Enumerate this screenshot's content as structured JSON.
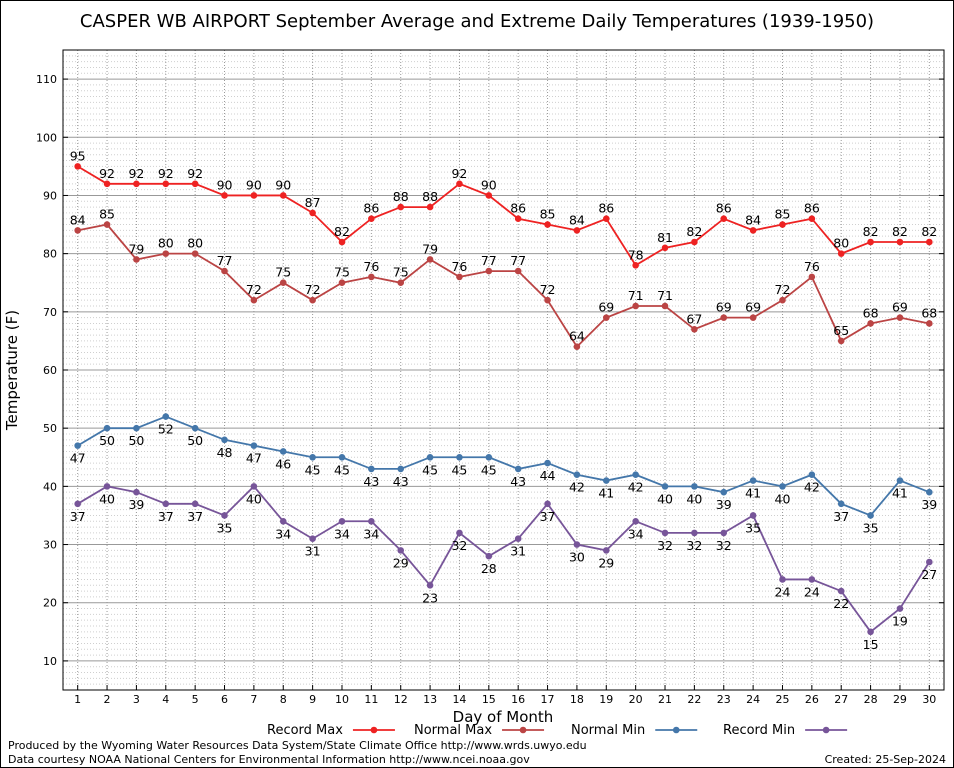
{
  "chart_data": {
    "type": "line",
    "title": "CASPER WB AIRPORT September Average and Extreme Daily Temperatures (1939-1950)",
    "xlabel": "Day of Month",
    "ylabel": "Temperature (F)",
    "xlim": [
      0.5,
      30.5
    ],
    "ylim": [
      5,
      115
    ],
    "yticks": [
      10,
      20,
      30,
      40,
      50,
      60,
      70,
      80,
      90,
      100,
      110
    ],
    "x": [
      1,
      2,
      3,
      4,
      5,
      6,
      7,
      8,
      9,
      10,
      11,
      12,
      13,
      14,
      15,
      16,
      17,
      18,
      19,
      20,
      21,
      22,
      23,
      24,
      25,
      26,
      27,
      28,
      29,
      30
    ],
    "grid": true,
    "legend_position": "bottom",
    "series": [
      {
        "name": "Record Max",
        "color": "#ee2222",
        "label_position": "above",
        "values": [
          95,
          92,
          92,
          92,
          92,
          90,
          90,
          90,
          87,
          82,
          86,
          88,
          88,
          92,
          90,
          86,
          85,
          84,
          86,
          78,
          81,
          82,
          86,
          84,
          85,
          86,
          80,
          82,
          82,
          82
        ]
      },
      {
        "name": "Normal Max",
        "color": "#bb4444",
        "label_position": "above",
        "values": [
          84,
          85,
          79,
          80,
          80,
          77,
          72,
          75,
          72,
          75,
          76,
          75,
          79,
          76,
          77,
          77,
          72,
          64,
          69,
          71,
          71,
          67,
          69,
          69,
          72,
          76,
          65,
          68,
          69,
          68
        ]
      },
      {
        "name": "Normal Min",
        "color": "#4477aa",
        "label_position": "below",
        "values": [
          47,
          50,
          50,
          52,
          50,
          48,
          47,
          46,
          45,
          45,
          43,
          43,
          45,
          45,
          45,
          43,
          44,
          42,
          41,
          42,
          40,
          40,
          39,
          41,
          40,
          42,
          37,
          35,
          41,
          39
        ]
      },
      {
        "name": "Record Min",
        "color": "#775599",
        "label_position": "below",
        "values": [
          37,
          40,
          39,
          37,
          37,
          35,
          40,
          34,
          31,
          34,
          34,
          29,
          23,
          32,
          28,
          31,
          37,
          30,
          29,
          34,
          32,
          32,
          32,
          35,
          24,
          24,
          22,
          15,
          19,
          27
        ]
      }
    ]
  },
  "footer": {
    "produced_by": "Produced by the Wyoming Water Resources Data System/State Climate Office http://www.wrds.uwyo.edu",
    "data_courtesy": "Data courtesy NOAA National Centers for Environmental Information http://www.ncei.noaa.gov",
    "created": "Created:  25-Sep-2024"
  }
}
